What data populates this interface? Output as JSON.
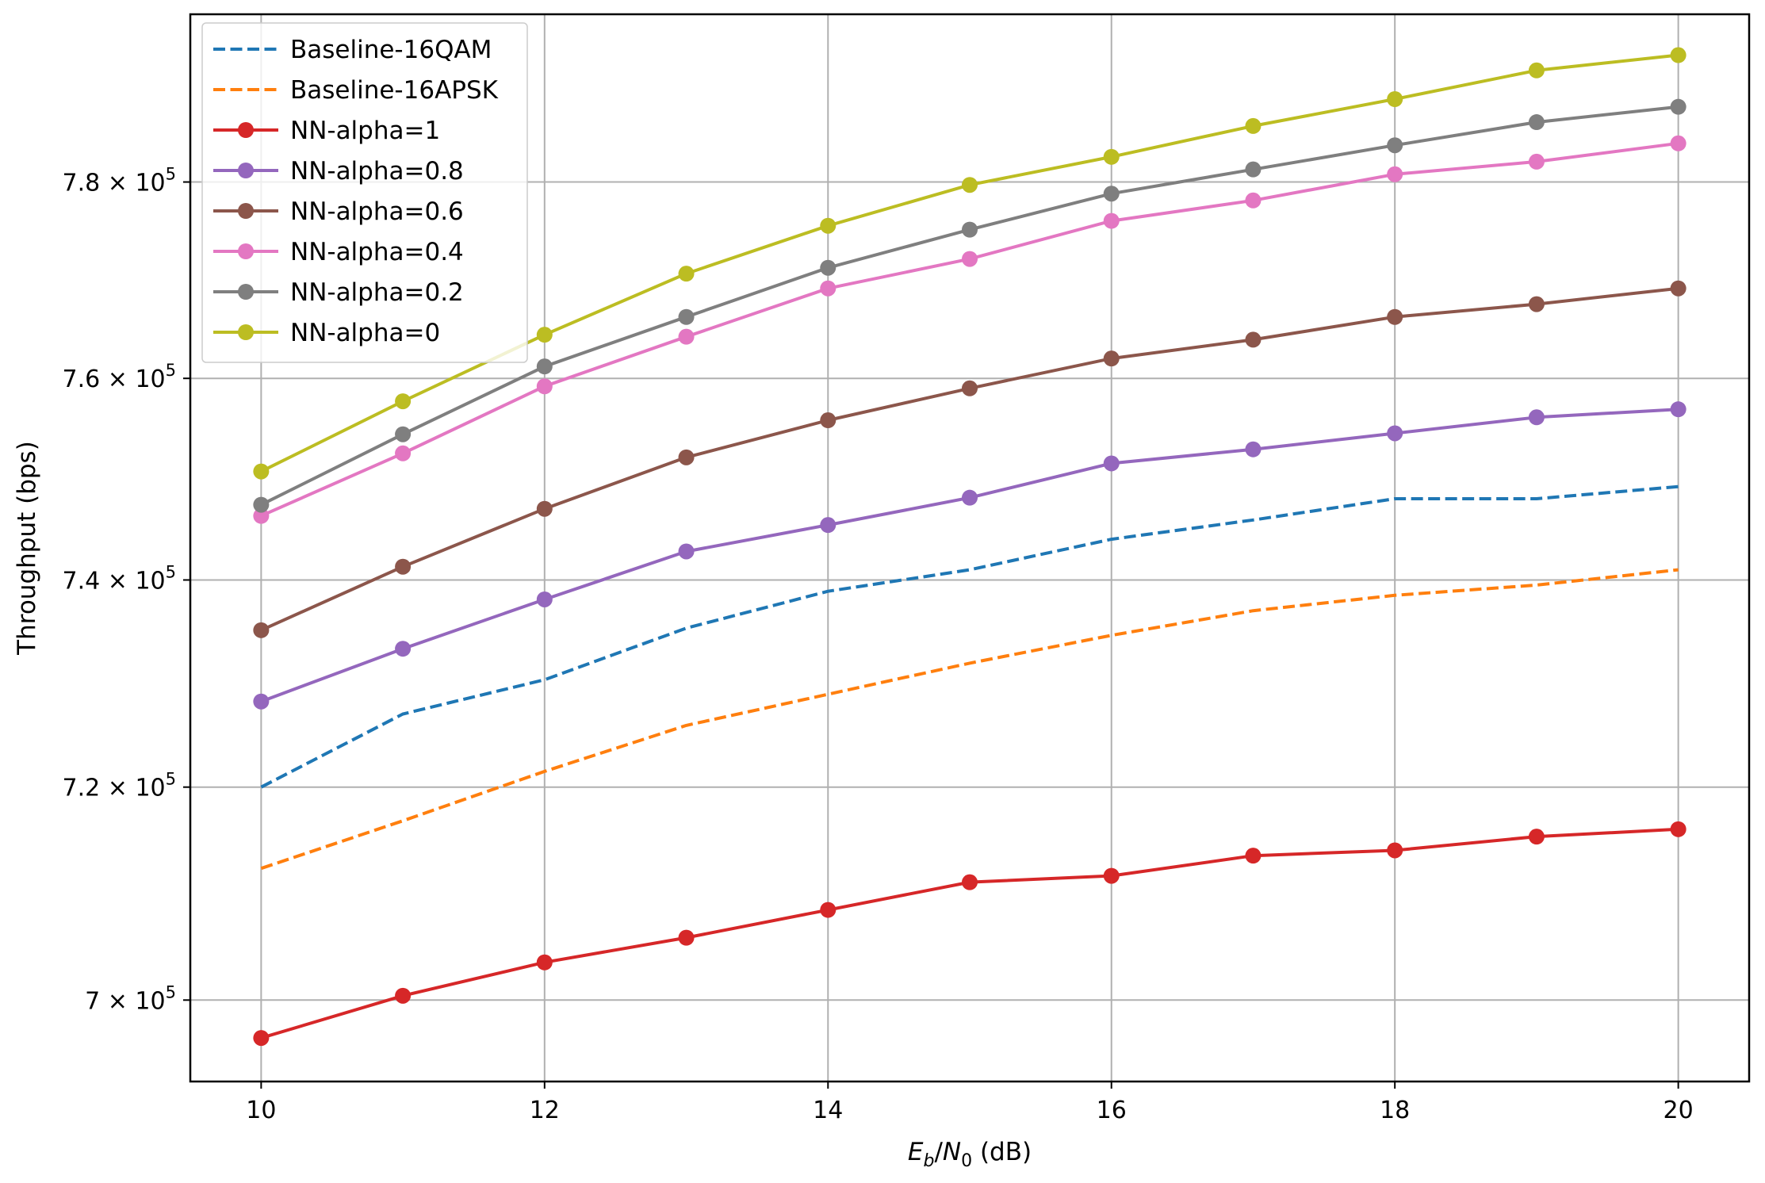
{
  "chart_data": {
    "type": "line",
    "xlabel_parts": {
      "e_main": "E",
      "e_sub": "b",
      "slash": "/",
      "n_main": "N",
      "n_sub": "0",
      "unit": " (dB)"
    },
    "ylabel": "Throughput (bps)",
    "y_scale": "log",
    "xlim": [
      9.5,
      20.5
    ],
    "ylim": [
      692500,
      797500
    ],
    "x_ticks": [
      10,
      12,
      14,
      16,
      18,
      20
    ],
    "y_ticks": [
      {
        "value": 700000,
        "mantissa": "7",
        "times": "×",
        "base": "10",
        "exp": "5"
      },
      {
        "value": 720000,
        "mantissa": "7.2",
        "times": "×",
        "base": "10",
        "exp": "5"
      },
      {
        "value": 740000,
        "mantissa": "7.4",
        "times": "×",
        "base": "10",
        "exp": "5"
      },
      {
        "value": 760000,
        "mantissa": "7.6",
        "times": "×",
        "base": "10",
        "exp": "5"
      },
      {
        "value": 780000,
        "mantissa": "7.8",
        "times": "×",
        "base": "10",
        "exp": "5"
      }
    ],
    "grid": true,
    "legend_position": "upper-left",
    "x": [
      10,
      11,
      12,
      13,
      14,
      15,
      16,
      17,
      18,
      19,
      20
    ],
    "series": [
      {
        "name": "Baseline-16QAM",
        "color": "#1f77b4",
        "style": "dashed",
        "marker": "none",
        "values": [
          720000,
          727000,
          730300,
          735300,
          738900,
          741000,
          744000,
          745900,
          748000,
          748000,
          749200
        ]
      },
      {
        "name": "Baseline-16APSK",
        "color": "#ff7f0e",
        "style": "dashed",
        "marker": "none",
        "values": [
          712300,
          716800,
          721500,
          725900,
          728900,
          731900,
          734600,
          737000,
          738500,
          739500,
          741000
        ]
      },
      {
        "name": "NN-alpha=1",
        "color": "#d62728",
        "style": "solid",
        "marker": "circle",
        "values": [
          696500,
          700400,
          703500,
          705800,
          708400,
          711000,
          711600,
          713500,
          714000,
          715300,
          716000
        ]
      },
      {
        "name": "NN-alpha=0.8",
        "color": "#9467bd",
        "style": "solid",
        "marker": "circle",
        "values": [
          728200,
          733300,
          738100,
          742800,
          745400,
          748100,
          751500,
          752900,
          754500,
          756100,
          756900
        ]
      },
      {
        "name": "NN-alpha=0.6",
        "color": "#8c564b",
        "style": "solid",
        "marker": "circle",
        "values": [
          735100,
          741300,
          747000,
          752100,
          755800,
          759000,
          762000,
          763900,
          766200,
          767500,
          769100
        ]
      },
      {
        "name": "NN-alpha=0.4",
        "color": "#e377c2",
        "style": "solid",
        "marker": "circle",
        "values": [
          746300,
          752500,
          759200,
          764200,
          769100,
          772100,
          776000,
          778100,
          780800,
          782100,
          784000
        ]
      },
      {
        "name": "NN-alpha=0.2",
        "color": "#7f7f7f",
        "style": "solid",
        "marker": "circle",
        "values": [
          747400,
          754400,
          761200,
          766200,
          771200,
          775100,
          778800,
          781300,
          783800,
          786200,
          787800
        ]
      },
      {
        "name": "NN-alpha=0",
        "color": "#bcbd22",
        "style": "solid",
        "marker": "circle",
        "values": [
          750700,
          757700,
          764400,
          770600,
          775500,
          779700,
          782600,
          785800,
          788600,
          791600,
          793200
        ]
      }
    ]
  }
}
